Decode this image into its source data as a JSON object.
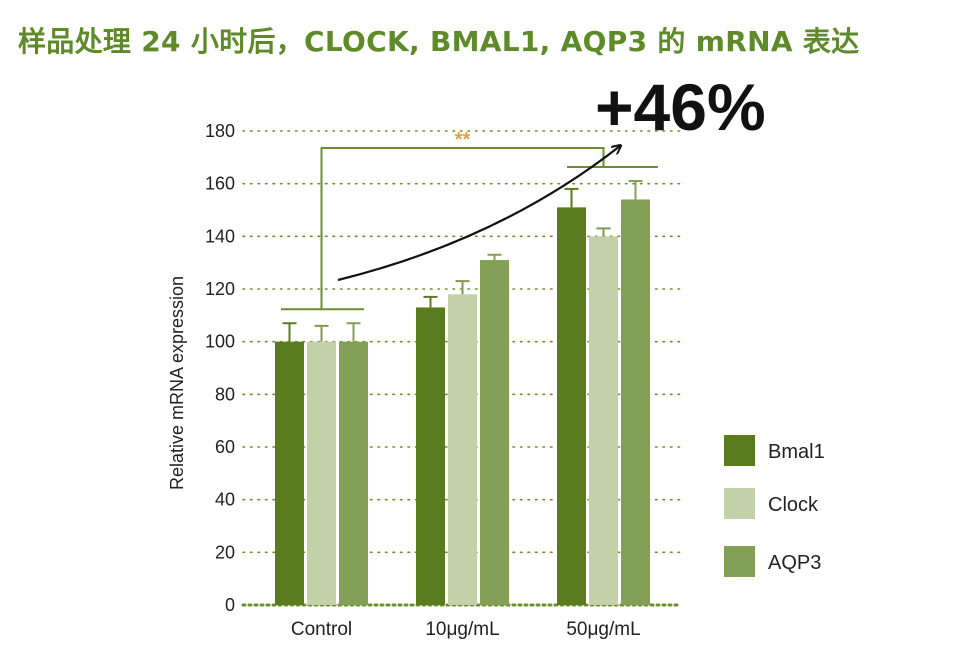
{
  "title": "样品处理 24 小时后，CLOCK, BMAL1, AQP3 的 mRNA 表达",
  "chart_data": {
    "type": "bar",
    "title": "样品处理 24 小时后，CLOCK, BMAL1, AQP3 的 mRNA 表达",
    "ylabel": "Relative mRNA expression",
    "xlabel": "",
    "ylim": [
      0,
      180
    ],
    "yticks": [
      0,
      20,
      40,
      60,
      80,
      100,
      120,
      140,
      160,
      180
    ],
    "grid": "horizontal dotted",
    "legend_position": "right",
    "categories": [
      "Control",
      "10μg/mL",
      "50μg/mL"
    ],
    "series": [
      {
        "name": "Bmal1",
        "color": "#5b7c1e",
        "values": [
          100,
          113,
          151
        ],
        "errors": [
          7,
          4,
          7
        ]
      },
      {
        "name": "Clock",
        "color": "#c3d1a9",
        "values": [
          100,
          118,
          140
        ],
        "errors": [
          6,
          5,
          3
        ]
      },
      {
        "name": "AQP3",
        "color": "#849f56",
        "values": [
          100,
          131,
          154
        ],
        "errors": [
          7,
          2,
          7
        ]
      }
    ],
    "annotations": {
      "increase_label": "+46%",
      "significance": "**",
      "accent_color": "#6a8f2c",
      "sig_color": "#d9a441"
    }
  }
}
